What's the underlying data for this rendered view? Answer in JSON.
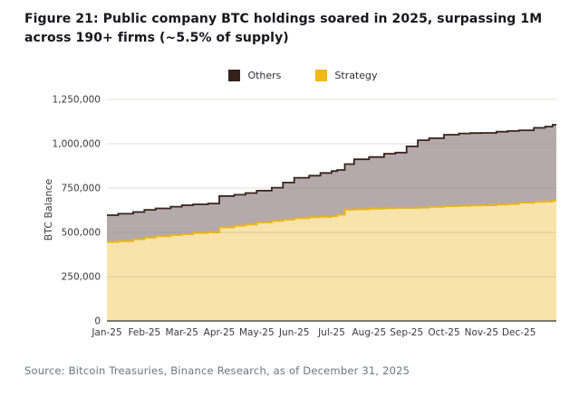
{
  "title": "Figure 21: Public company BTC holdings soared in 2025, surpassing 1M across 190+ firms (~5.5% of supply)",
  "source": "Source: Bitcoin Treasuries, Binance Research, as of December 31, 2025",
  "legend": {
    "items": [
      {
        "id": "others",
        "label": "Others",
        "color": "#33211a"
      },
      {
        "id": "strategy",
        "label": "Strategy",
        "color": "#f0b917"
      }
    ]
  },
  "chart_data": {
    "type": "area",
    "stacked": true,
    "ylabel": "BTC Balance",
    "ylim": [
      0,
      1250000
    ],
    "yticks": [
      0,
      250000,
      500000,
      750000,
      1000000,
      1250000
    ],
    "xticks": [
      "Jan-25",
      "Feb-25",
      "Mar-25",
      "Apr-25",
      "May-25",
      "Jun-25",
      "Jul-25",
      "Aug-25",
      "Sep-25",
      "Oct-25",
      "Nov-25",
      "Dec-25"
    ],
    "x_months": [
      0,
      0.3,
      0.7,
      1.0,
      1.3,
      1.7,
      2.0,
      2.3,
      2.7,
      3.0,
      3.4,
      3.7,
      4.0,
      4.4,
      4.7,
      5.0,
      5.4,
      5.7,
      6.0,
      6.15,
      6.35,
      6.6,
      7.0,
      7.4,
      7.7,
      8.0,
      8.3,
      8.6,
      9.0,
      9.4,
      9.7,
      10.0,
      10.4,
      10.7,
      11.0,
      11.4,
      11.7,
      11.9,
      12.0
    ],
    "series": [
      {
        "name": "Strategy",
        "fill": "#f8e3ab",
        "stroke": "#e9b51c",
        "values": [
          446000,
          450000,
          461000,
          471000,
          478000,
          485000,
          490000,
          497000,
          500000,
          528000,
          538000,
          545000,
          556000,
          565000,
          572000,
          580000,
          585000,
          588000,
          592000,
          600000,
          628000,
          630000,
          634000,
          636000,
          638000,
          638000,
          640000,
          644000,
          648000,
          650000,
          652000,
          653000,
          657000,
          660000,
          668000,
          672000,
          674000,
          679000,
          679000
        ]
      },
      {
        "name": "Others",
        "fill": "#b4aaac",
        "stroke": "#372419",
        "values": [
          151000,
          155000,
          154000,
          156000,
          157000,
          160000,
          163000,
          161000,
          163000,
          177000,
          174000,
          177000,
          179000,
          187000,
          209000,
          228000,
          235000,
          247000,
          254000,
          252000,
          257000,
          282000,
          291000,
          308000,
          312000,
          347000,
          380000,
          387000,
          403000,
          408000,
          408000,
          408000,
          411000,
          412000,
          408000,
          418000,
          423000,
          428000,
          428000
        ]
      }
    ],
    "grid": true,
    "legend_position": "top-center",
    "axis_color": "#57524c",
    "grid_color": "#8c827e",
    "tick_color": "#3b3b3b"
  }
}
